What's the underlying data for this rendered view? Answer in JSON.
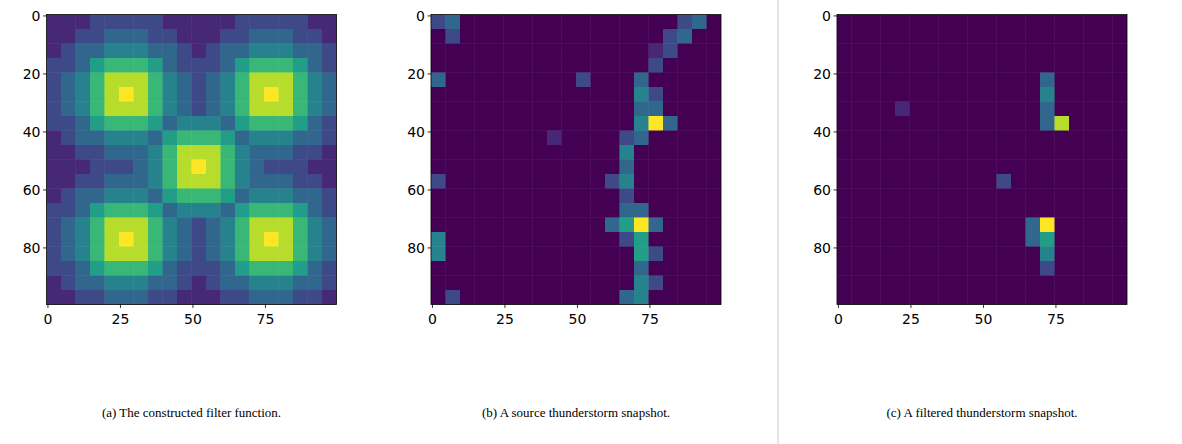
{
  "chart_data": [
    {
      "type": "heatmap",
      "title": "(a) The constructed filter function.",
      "xlim": [
        -0.5,
        99.5
      ],
      "ylim": [
        99.5,
        -0.5
      ],
      "xticks": [
        0,
        25,
        50,
        75
      ],
      "yticks": [
        0,
        20,
        40,
        60,
        80
      ],
      "zlim": [
        0,
        9
      ],
      "cells": [
        [
          1,
          1,
          1,
          2,
          2,
          2,
          2,
          2,
          1,
          1,
          1,
          1,
          1,
          2,
          2,
          2,
          2,
          2,
          1,
          1
        ],
        [
          1,
          1,
          2,
          2,
          3,
          3,
          3,
          2,
          2,
          1,
          1,
          1,
          2,
          2,
          3,
          3,
          3,
          2,
          2,
          1
        ],
        [
          1,
          2,
          3,
          3,
          4,
          4,
          4,
          3,
          3,
          2,
          1,
          2,
          3,
          3,
          4,
          4,
          4,
          3,
          3,
          2
        ],
        [
          2,
          2,
          3,
          5,
          6,
          6,
          6,
          5,
          3,
          2,
          2,
          2,
          3,
          5,
          6,
          6,
          6,
          5,
          3,
          2
        ],
        [
          2,
          3,
          4,
          6,
          8,
          8,
          8,
          6,
          4,
          3,
          2,
          3,
          4,
          6,
          8,
          8,
          8,
          6,
          4,
          3
        ],
        [
          2,
          3,
          4,
          6,
          8,
          9,
          8,
          6,
          4,
          3,
          2,
          3,
          4,
          6,
          8,
          9,
          8,
          6,
          4,
          3
        ],
        [
          2,
          3,
          4,
          6,
          8,
          8,
          8,
          6,
          4,
          3,
          2,
          3,
          4,
          6,
          8,
          8,
          8,
          6,
          4,
          3
        ],
        [
          2,
          2,
          3,
          5,
          6,
          6,
          6,
          5,
          3,
          4,
          4,
          4,
          3,
          5,
          6,
          6,
          6,
          5,
          3,
          2
        ],
        [
          1,
          2,
          3,
          3,
          4,
          4,
          4,
          3,
          5,
          6,
          6,
          6,
          5,
          3,
          4,
          4,
          4,
          3,
          3,
          2
        ],
        [
          1,
          1,
          2,
          2,
          3,
          3,
          3,
          4,
          6,
          8,
          8,
          8,
          6,
          4,
          3,
          3,
          3,
          2,
          2,
          1
        ],
        [
          1,
          1,
          1,
          2,
          2,
          2,
          3,
          4,
          6,
          8,
          9,
          8,
          6,
          4,
          3,
          2,
          2,
          2,
          1,
          1
        ],
        [
          1,
          1,
          2,
          2,
          3,
          3,
          3,
          4,
          6,
          8,
          8,
          8,
          6,
          4,
          3,
          3,
          3,
          2,
          2,
          1
        ],
        [
          1,
          2,
          3,
          3,
          4,
          4,
          4,
          3,
          5,
          6,
          6,
          6,
          5,
          3,
          4,
          4,
          4,
          3,
          3,
          2
        ],
        [
          2,
          2,
          3,
          5,
          6,
          6,
          6,
          5,
          3,
          4,
          4,
          4,
          3,
          5,
          6,
          6,
          6,
          5,
          3,
          2
        ],
        [
          2,
          3,
          4,
          6,
          8,
          8,
          8,
          6,
          4,
          3,
          2,
          3,
          4,
          6,
          8,
          8,
          8,
          6,
          4,
          3
        ],
        [
          2,
          3,
          4,
          6,
          8,
          9,
          8,
          6,
          4,
          3,
          2,
          3,
          4,
          6,
          8,
          9,
          8,
          6,
          4,
          3
        ],
        [
          2,
          3,
          4,
          6,
          8,
          8,
          8,
          6,
          4,
          3,
          2,
          3,
          4,
          6,
          8,
          8,
          8,
          6,
          4,
          3
        ],
        [
          2,
          2,
          3,
          5,
          6,
          6,
          6,
          5,
          3,
          2,
          2,
          2,
          3,
          5,
          6,
          6,
          6,
          5,
          3,
          2
        ],
        [
          1,
          2,
          3,
          3,
          4,
          4,
          4,
          3,
          3,
          2,
          1,
          2,
          3,
          3,
          4,
          4,
          4,
          3,
          3,
          2
        ],
        [
          1,
          1,
          2,
          2,
          3,
          3,
          3,
          2,
          2,
          1,
          1,
          1,
          2,
          2,
          3,
          3,
          3,
          2,
          2,
          1
        ]
      ]
    },
    {
      "type": "heatmap",
      "title": "(b) A source thunderstorm snapshot.",
      "xlim": [
        -0.5,
        99.5
      ],
      "ylim": [
        99.5,
        -0.5
      ],
      "xticks": [
        0,
        25,
        50,
        75
      ],
      "yticks": [
        0,
        20,
        40,
        60,
        80
      ],
      "zlim": [
        0,
        9
      ],
      "cells": [
        [
          2,
          3,
          0,
          0,
          0,
          0,
          0,
          0,
          0,
          0,
          0,
          0,
          0,
          0,
          0,
          0,
          0,
          2,
          3,
          0
        ],
        [
          0,
          2,
          0,
          0,
          0,
          0,
          0,
          0,
          0,
          0,
          0,
          0,
          0,
          0,
          0,
          0,
          2,
          3,
          0,
          0
        ],
        [
          0,
          0,
          0,
          0,
          0,
          0,
          0,
          0,
          0,
          0,
          0,
          0,
          0,
          0,
          0,
          1,
          2,
          0,
          0,
          0
        ],
        [
          0,
          0,
          0,
          0,
          0,
          0,
          0,
          0,
          0,
          0,
          0,
          0,
          0,
          0,
          0,
          2,
          0,
          0,
          0,
          0
        ],
        [
          3,
          0,
          0,
          0,
          0,
          0,
          0,
          0,
          0,
          0,
          2,
          0,
          0,
          0,
          3,
          0,
          0,
          0,
          0,
          0
        ],
        [
          0,
          0,
          0,
          0,
          0,
          0,
          0,
          0,
          0,
          0,
          0,
          0,
          0,
          0,
          4,
          2,
          0,
          0,
          0,
          0
        ],
        [
          0,
          0,
          0,
          0,
          0,
          0,
          0,
          0,
          0,
          0,
          0,
          0,
          0,
          0,
          3,
          3,
          0,
          0,
          0,
          0
        ],
        [
          0,
          0,
          0,
          0,
          0,
          0,
          0,
          0,
          0,
          0,
          0,
          0,
          0,
          0,
          4,
          9,
          3,
          0,
          0,
          0
        ],
        [
          0,
          0,
          0,
          0,
          0,
          0,
          0,
          0,
          1,
          0,
          0,
          0,
          0,
          2,
          3,
          0,
          0,
          0,
          0,
          0
        ],
        [
          0,
          0,
          0,
          0,
          0,
          0,
          0,
          0,
          0,
          0,
          0,
          0,
          0,
          4,
          0,
          0,
          0,
          0,
          0,
          0
        ],
        [
          0,
          0,
          0,
          0,
          0,
          0,
          0,
          0,
          0,
          0,
          0,
          0,
          0,
          3,
          0,
          0,
          0,
          0,
          0,
          0
        ],
        [
          2,
          0,
          0,
          0,
          0,
          0,
          0,
          0,
          0,
          0,
          0,
          0,
          2,
          4,
          0,
          0,
          0,
          0,
          0,
          0
        ],
        [
          0,
          0,
          0,
          0,
          0,
          0,
          0,
          0,
          0,
          0,
          0,
          0,
          0,
          2,
          0,
          0,
          0,
          0,
          0,
          0
        ],
        [
          0,
          0,
          0,
          0,
          0,
          0,
          0,
          0,
          0,
          0,
          0,
          0,
          0,
          3,
          3,
          0,
          0,
          0,
          0,
          0
        ],
        [
          0,
          0,
          0,
          0,
          0,
          0,
          0,
          0,
          0,
          0,
          0,
          0,
          3,
          5,
          9,
          3,
          0,
          0,
          0,
          0
        ],
        [
          4,
          0,
          0,
          0,
          0,
          0,
          0,
          0,
          0,
          0,
          0,
          0,
          0,
          2,
          5,
          0,
          0,
          0,
          0,
          0
        ],
        [
          4,
          0,
          0,
          0,
          0,
          0,
          0,
          0,
          0,
          0,
          0,
          0,
          0,
          0,
          5,
          2,
          0,
          0,
          0,
          0
        ],
        [
          0,
          0,
          0,
          0,
          0,
          0,
          0,
          0,
          0,
          0,
          0,
          0,
          0,
          0,
          3,
          0,
          0,
          0,
          0,
          0
        ],
        [
          0,
          0,
          0,
          0,
          0,
          0,
          0,
          0,
          0,
          0,
          0,
          0,
          0,
          0,
          4,
          2,
          0,
          0,
          0,
          0
        ],
        [
          0,
          2,
          0,
          0,
          0,
          0,
          0,
          0,
          0,
          0,
          0,
          0,
          0,
          3,
          4,
          0,
          0,
          0,
          0,
          0
        ]
      ]
    },
    {
      "type": "heatmap",
      "title": "(c) A filtered thunderstorm snapshot.",
      "xlim": [
        -0.5,
        99.5
      ],
      "ylim": [
        99.5,
        -0.5
      ],
      "xticks": [
        0,
        25,
        50,
        75
      ],
      "yticks": [
        0,
        20,
        40,
        60,
        80
      ],
      "zlim": [
        0,
        9
      ],
      "cells": [
        [
          0,
          0,
          0,
          0,
          0,
          0,
          0,
          0,
          0,
          0,
          0,
          0,
          0,
          0,
          0,
          0,
          0,
          0,
          0,
          0
        ],
        [
          0,
          0,
          0,
          0,
          0,
          0,
          0,
          0,
          0,
          0,
          0,
          0,
          0,
          0,
          0,
          0,
          0,
          0,
          0,
          0
        ],
        [
          0,
          0,
          0,
          0,
          0,
          0,
          0,
          0,
          0,
          0,
          0,
          0,
          0,
          0,
          0,
          0,
          0,
          0,
          0,
          0
        ],
        [
          0,
          0,
          0,
          0,
          0,
          0,
          0,
          0,
          0,
          0,
          0,
          0,
          0,
          0,
          0,
          0,
          0,
          0,
          0,
          0
        ],
        [
          0,
          0,
          0,
          0,
          0,
          0,
          0,
          0,
          0,
          0,
          0,
          0,
          0,
          0,
          3,
          0,
          0,
          0,
          0,
          0
        ],
        [
          0,
          0,
          0,
          0,
          0,
          0,
          0,
          0,
          0,
          0,
          0,
          0,
          0,
          0,
          4,
          0,
          0,
          0,
          0,
          0
        ],
        [
          0,
          0,
          0,
          0,
          1,
          0,
          0,
          0,
          0,
          0,
          0,
          0,
          0,
          0,
          3,
          0,
          0,
          0,
          0,
          0
        ],
        [
          0,
          0,
          0,
          0,
          0,
          0,
          0,
          0,
          0,
          0,
          0,
          0,
          0,
          0,
          3,
          8,
          0,
          0,
          0,
          0
        ],
        [
          0,
          0,
          0,
          0,
          0,
          0,
          0,
          0,
          0,
          0,
          0,
          0,
          0,
          0,
          0,
          0,
          0,
          0,
          0,
          0
        ],
        [
          0,
          0,
          0,
          0,
          0,
          0,
          0,
          0,
          0,
          0,
          0,
          0,
          0,
          0,
          0,
          0,
          0,
          0,
          0,
          0
        ],
        [
          0,
          0,
          0,
          0,
          0,
          0,
          0,
          0,
          0,
          0,
          0,
          0,
          0,
          0,
          0,
          0,
          0,
          0,
          0,
          0
        ],
        [
          0,
          0,
          0,
          0,
          0,
          0,
          0,
          0,
          0,
          0,
          0,
          2,
          0,
          0,
          0,
          0,
          0,
          0,
          0,
          0
        ],
        [
          0,
          0,
          0,
          0,
          0,
          0,
          0,
          0,
          0,
          0,
          0,
          0,
          0,
          0,
          0,
          0,
          0,
          0,
          0,
          0
        ],
        [
          0,
          0,
          0,
          0,
          0,
          0,
          0,
          0,
          0,
          0,
          0,
          0,
          0,
          0,
          0,
          0,
          0,
          0,
          0,
          0
        ],
        [
          0,
          0,
          0,
          0,
          0,
          0,
          0,
          0,
          0,
          0,
          0,
          0,
          0,
          3,
          9,
          0,
          0,
          0,
          0,
          0
        ],
        [
          0,
          0,
          0,
          0,
          0,
          0,
          0,
          0,
          0,
          0,
          0,
          0,
          0,
          3,
          5,
          0,
          0,
          0,
          0,
          0
        ],
        [
          0,
          0,
          0,
          0,
          0,
          0,
          0,
          0,
          0,
          0,
          0,
          0,
          0,
          0,
          4,
          0,
          0,
          0,
          0,
          0
        ],
        [
          0,
          0,
          0,
          0,
          0,
          0,
          0,
          0,
          0,
          0,
          0,
          0,
          0,
          0,
          2,
          0,
          0,
          0,
          0,
          0
        ],
        [
          0,
          0,
          0,
          0,
          0,
          0,
          0,
          0,
          0,
          0,
          0,
          0,
          0,
          0,
          0,
          0,
          0,
          0,
          0,
          0
        ],
        [
          0,
          0,
          0,
          0,
          0,
          0,
          0,
          0,
          0,
          0,
          0,
          0,
          0,
          0,
          0,
          0,
          0,
          0,
          0,
          0
        ]
      ]
    }
  ]
}
